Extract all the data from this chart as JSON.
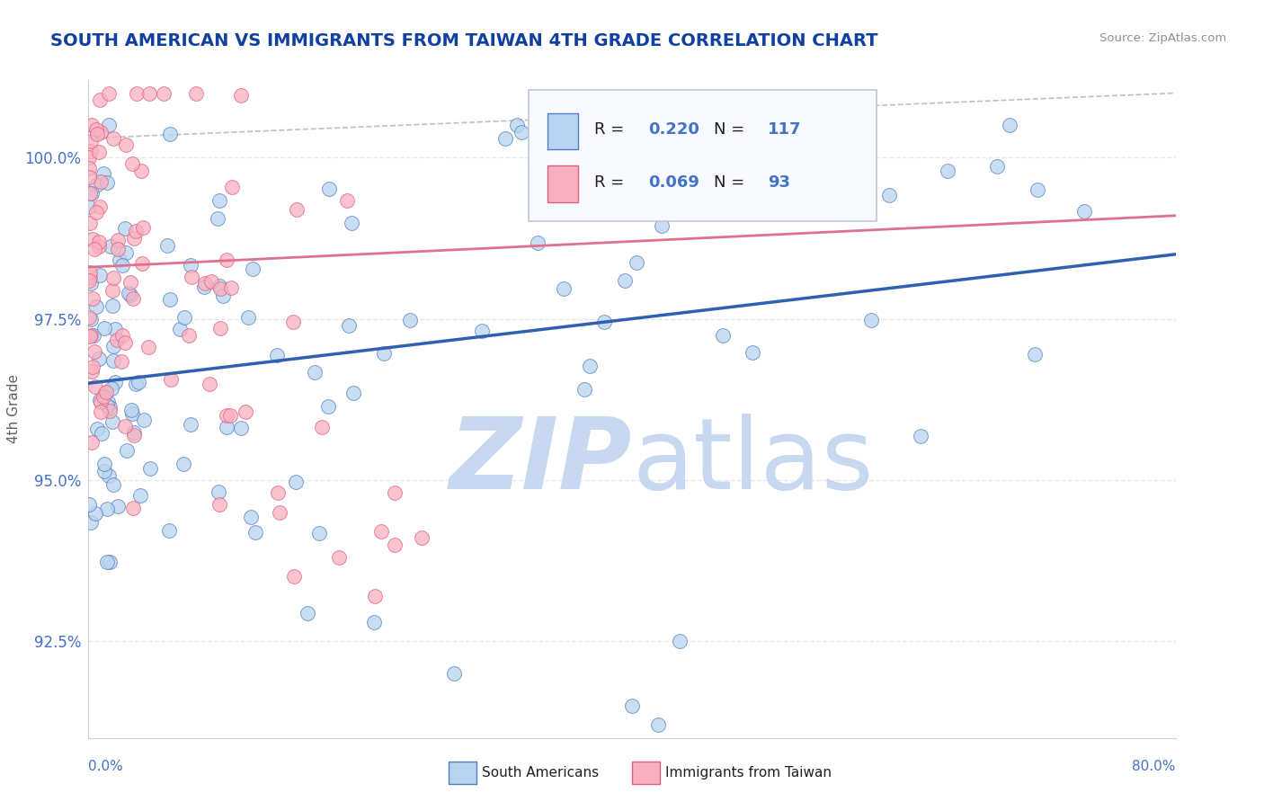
{
  "title": "SOUTH AMERICAN VS IMMIGRANTS FROM TAIWAN 4TH GRADE CORRELATION CHART",
  "source": "Source: ZipAtlas.com",
  "ylabel": "4th Grade",
  "ytick_values": [
    92.5,
    95.0,
    97.5,
    100.0
  ],
  "xlim": [
    0.0,
    80.0
  ],
  "ylim": [
    91.0,
    101.2
  ],
  "legend_R_blue": "0.220",
  "legend_N_blue": "117",
  "legend_R_pink": "0.069",
  "legend_N_pink": "93",
  "blue_fill": "#b8d4f0",
  "blue_edge": "#5080c0",
  "pink_fill": "#f8b0c0",
  "pink_edge": "#e06080",
  "blue_line_color": "#3060b0",
  "pink_line_color": "#e07090",
  "gray_dash_color": "#c0c0c0",
  "title_color": "#1040a0",
  "source_color": "#909090",
  "axis_color": "#4472c4",
  "watermark_zip_color": "#c8d8f0",
  "watermark_atlas_color": "#c8d8f0",
  "grid_color": "#e8e8e8",
  "legend_border": "#c0c8d8",
  "legend_bg": "#f8faff"
}
